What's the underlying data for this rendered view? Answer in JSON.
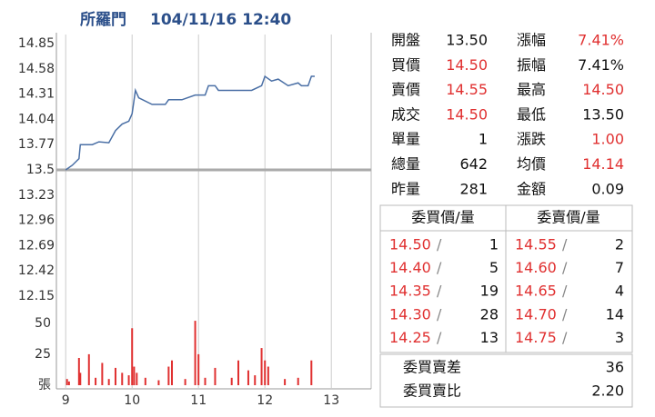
{
  "header": {
    "name": "所羅門",
    "datetime": "104/11/16 12:40"
  },
  "chart_data": [
    {
      "type": "line",
      "x": [
        9.0,
        9.1,
        9.2,
        9.22,
        9.4,
        9.5,
        9.65,
        9.75,
        9.85,
        9.95,
        10.0,
        10.05,
        10.1,
        10.3,
        10.5,
        10.55,
        10.75,
        10.95,
        11.1,
        11.15,
        11.25,
        11.3,
        11.8,
        11.95,
        12.0,
        12.1,
        12.2,
        12.35,
        12.5,
        12.55,
        12.65,
        12.7,
        12.75
      ],
      "series": [
        {
          "name": "price",
          "color": "#4a6fa5",
          "values": [
            13.5,
            13.55,
            13.62,
            13.77,
            13.77,
            13.8,
            13.79,
            13.92,
            13.99,
            14.02,
            14.1,
            14.35,
            14.27,
            14.2,
            14.2,
            14.25,
            14.25,
            14.3,
            14.3,
            14.4,
            14.4,
            14.35,
            14.35,
            14.4,
            14.5,
            14.45,
            14.47,
            14.4,
            14.43,
            14.4,
            14.4,
            14.5,
            14.5
          ]
        }
      ],
      "xlim": [
        8.86,
        13.6
      ],
      "xticks": [
        9,
        10,
        11,
        12,
        13
      ],
      "ylim": [
        12.15,
        14.85
      ],
      "yticks": [
        12.15,
        12.42,
        12.69,
        12.96,
        13.23,
        13.5,
        13.77,
        14.04,
        14.31,
        14.58,
        14.85
      ],
      "baseline": 13.5,
      "grid": true
    },
    {
      "type": "bar",
      "x": [
        9.02,
        9.05,
        9.2,
        9.22,
        9.35,
        9.45,
        9.55,
        9.65,
        9.75,
        9.85,
        9.95,
        10.0,
        10.03,
        10.07,
        10.2,
        10.4,
        10.55,
        10.6,
        10.8,
        10.95,
        11.0,
        11.1,
        11.25,
        11.5,
        11.6,
        11.75,
        11.85,
        11.95,
        12.0,
        12.05,
        12.3,
        12.5,
        12.7
      ],
      "series": [
        {
          "name": "volume",
          "color": "#e03030",
          "values": [
            5,
            3,
            22,
            10,
            25,
            6,
            18,
            5,
            14,
            10,
            8,
            46,
            15,
            10,
            6,
            4,
            15,
            20,
            5,
            52,
            25,
            6,
            14,
            6,
            20,
            12,
            8,
            30,
            20,
            15,
            5,
            6,
            20
          ]
        }
      ],
      "xlim": [
        8.86,
        13.6
      ],
      "xticks": [
        9,
        10,
        11,
        12,
        13
      ],
      "ylim": [
        0,
        55
      ],
      "yticks": [
        {
          "value": 0,
          "label": "張"
        },
        25,
        50
      ],
      "grid": true
    }
  ],
  "quote": [
    [
      {
        "label": "開盤",
        "value": "13.50",
        "color": "#111"
      },
      {
        "label": "漲幅",
        "value": "7.41%",
        "color": "#e03030"
      }
    ],
    [
      {
        "label": "買價",
        "value": "14.50",
        "color": "#e03030"
      },
      {
        "label": "振幅",
        "value": "7.41%",
        "color": "#111"
      }
    ],
    [
      {
        "label": "賣價",
        "value": "14.55",
        "color": "#e03030"
      },
      {
        "label": "最高",
        "value": "14.50",
        "color": "#e03030"
      }
    ],
    [
      {
        "label": "成交",
        "value": "14.50",
        "color": "#e03030"
      },
      {
        "label": "最低",
        "value": "13.50",
        "color": "#111"
      }
    ],
    [
      {
        "label": "單量",
        "value": "1",
        "color": "#111"
      },
      {
        "label": "漲跌",
        "value": "1.00",
        "color": "#e03030"
      }
    ],
    [
      {
        "label": "總量",
        "value": "642",
        "color": "#111"
      },
      {
        "label": "均價",
        "value": "14.14",
        "color": "#e03030"
      }
    ],
    [
      {
        "label": "昨量",
        "value": "281",
        "color": "#111"
      },
      {
        "label": "金額",
        "value": "0.09",
        "color": "#111"
      }
    ]
  ],
  "order_book": {
    "bid_header": "委買價/量",
    "ask_header": "委賣價/量",
    "separator": "/",
    "rows": [
      [
        "14.50",
        "1",
        "14.55",
        "2"
      ],
      [
        "14.40",
        "5",
        "14.60",
        "7"
      ],
      [
        "14.35",
        "19",
        "14.65",
        "4"
      ],
      [
        "14.30",
        "28",
        "14.70",
        "14"
      ],
      [
        "14.25",
        "13",
        "14.75",
        "3"
      ]
    ]
  },
  "summary": [
    {
      "label": "委買賣差",
      "value": "36"
    },
    {
      "label": "委買賣比",
      "value": "2.20"
    }
  ]
}
